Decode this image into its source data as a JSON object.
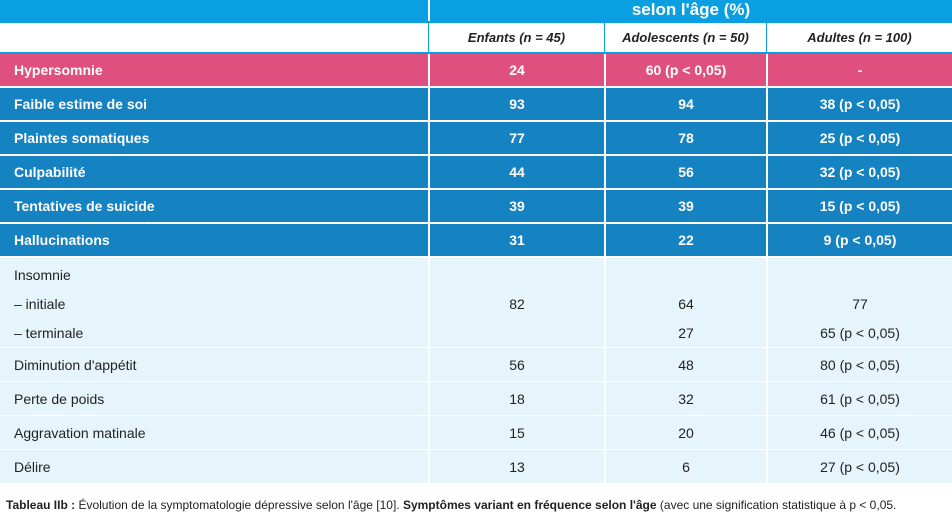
{
  "table": {
    "group_header": "selon l'âge (%)",
    "columns": [
      "Enfants (n = 45)",
      "Adolescents (n = 50)",
      "Adultes (n = 100)"
    ],
    "rows": [
      {
        "label": "Hypersomnie",
        "values": [
          "24",
          "60 (p < 0,05)",
          "-"
        ],
        "style": "pink"
      },
      {
        "label": "Faible estime de soi",
        "values": [
          "93",
          "94",
          "38 (p < 0,05)"
        ],
        "style": "blue"
      },
      {
        "label": "Plaintes somatiques",
        "values": [
          "77",
          "78",
          "25 (p < 0,05)"
        ],
        "style": "blue"
      },
      {
        "label": "Culpabilité",
        "values": [
          "44",
          "56",
          "32 (p < 0,05)"
        ],
        "style": "blue"
      },
      {
        "label": "Tentatives de suicide",
        "values": [
          "39",
          "39",
          "15 (p < 0,05)"
        ],
        "style": "blue"
      },
      {
        "label": "Hallucinations",
        "values": [
          "31",
          "22",
          "9 (p < 0,05)"
        ],
        "style": "blue"
      },
      {
        "label": "Diminution d'appétit",
        "values": [
          "56",
          "48",
          "80 (p < 0,05)"
        ],
        "style": "light"
      },
      {
        "label": "Perte de poids",
        "values": [
          "18",
          "32",
          "61 (p < 0,05)"
        ],
        "style": "light"
      },
      {
        "label": "Aggravation matinale",
        "values": [
          "15",
          "20",
          "46 (p < 0,05)"
        ],
        "style": "light"
      },
      {
        "label": "Délire",
        "values": [
          "13",
          "6",
          "27 (p < 0,05)"
        ],
        "style": "light"
      }
    ],
    "insomnia": {
      "label": "Insomnie",
      "initial_label": "– initiale",
      "terminal_label": "– terminale",
      "enfants": "82",
      "adolescents_initial": "64",
      "adolescents_terminal": "27",
      "adultes_initial": "77",
      "adultes_terminal": "65 (p < 0,05)"
    }
  },
  "caption": {
    "label": "Tableau IIb :",
    "text1": " Évolution de la symptomatologie dépressive selon l'âge [10]. ",
    "bold": "Symptômes variant en fréquence selon l'âge",
    "text2": " (avec une signification statistique à p < 0,05."
  }
}
